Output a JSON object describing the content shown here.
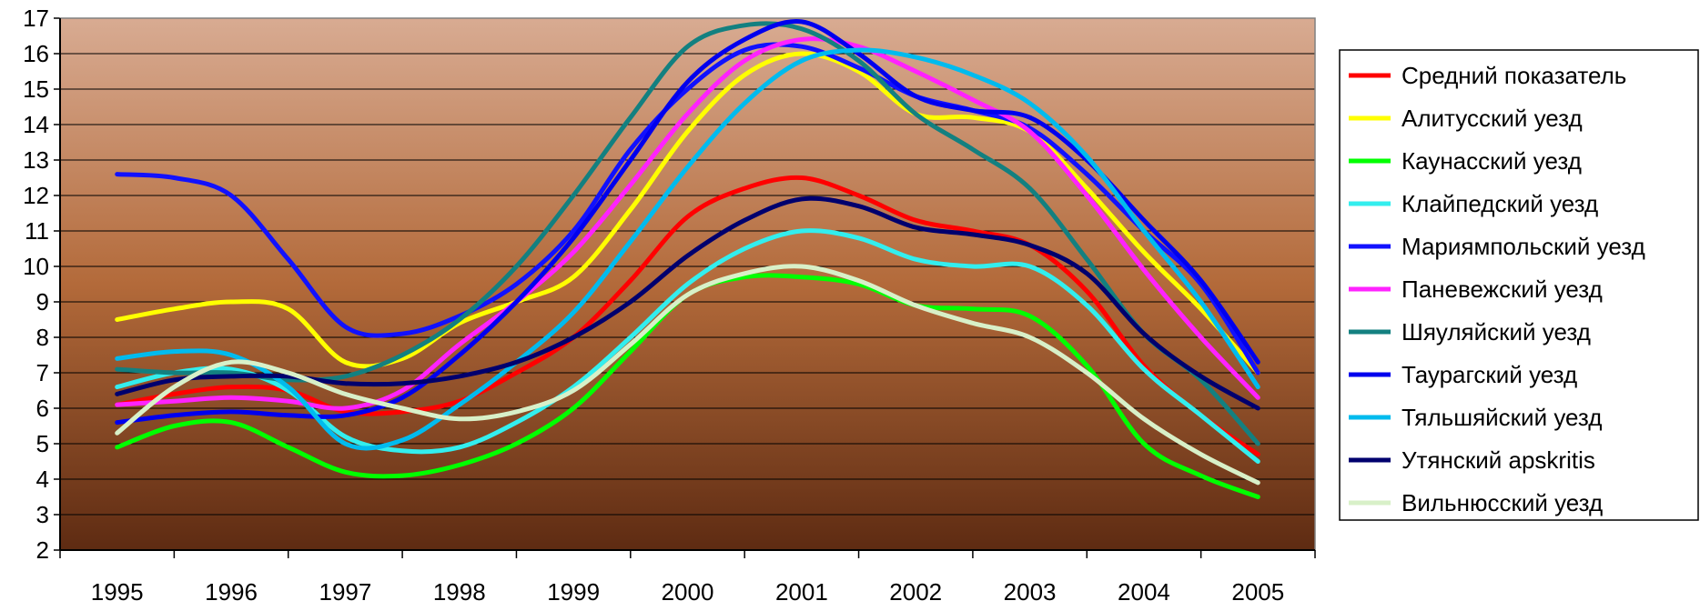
{
  "chart_data": {
    "type": "line",
    "title": "",
    "xlabel": "",
    "ylabel": "",
    "x": [
      1995.0,
      1995.5,
      1996.0,
      1996.5,
      1997.0,
      1997.5,
      1998.0,
      1998.5,
      1999.0,
      1999.5,
      2000.0,
      2000.5,
      2001.0,
      2001.5,
      2002.0,
      2002.5,
      2003.0,
      2003.5,
      2004.0,
      2004.5,
      2005.0
    ],
    "x_ticks": [
      "1995",
      "1996",
      "1997",
      "1998",
      "1999",
      "2000",
      "2001",
      "2002",
      "2003",
      "2004",
      "2005"
    ],
    "xlim": [
      1994.5,
      2005.5
    ],
    "ylim": [
      2,
      17
    ],
    "y_ticks": [
      2,
      3,
      4,
      5,
      6,
      7,
      8,
      9,
      10,
      11,
      12,
      13,
      14,
      15,
      16,
      17
    ],
    "grid": true,
    "legend_position": "right",
    "background_gradient": [
      "#d8ab92",
      "#b36a3a",
      "#5e2b12"
    ],
    "series": [
      {
        "name": "Средний показатель",
        "color": "#ff0000",
        "values": [
          6.1,
          6.4,
          6.6,
          6.5,
          5.9,
          5.9,
          6.2,
          7.0,
          8.0,
          9.6,
          11.4,
          12.2,
          12.5,
          12.0,
          11.3,
          11.0,
          10.6,
          9.3,
          7.2,
          5.8,
          4.7
        ]
      },
      {
        "name": "Алитусский уезд",
        "color": "#ffff00",
        "values": [
          8.5,
          8.8,
          9.0,
          8.8,
          7.3,
          7.4,
          8.4,
          9.0,
          9.7,
          11.6,
          13.8,
          15.4,
          16.0,
          15.5,
          14.3,
          14.2,
          13.8,
          12.2,
          10.4,
          8.8,
          7.0
        ]
      },
      {
        "name": "Каунасский уезд",
        "color": "#00ff00",
        "values": [
          4.9,
          5.5,
          5.6,
          4.9,
          4.2,
          4.1,
          4.4,
          5.0,
          6.0,
          7.6,
          9.2,
          9.7,
          9.7,
          9.5,
          8.9,
          8.8,
          8.6,
          7.2,
          5.0,
          4.1,
          3.5
        ]
      },
      {
        "name": "Клайпедский  уезд",
        "color": "#33eeee",
        "values": [
          6.6,
          7.0,
          7.1,
          6.5,
          5.2,
          4.8,
          4.9,
          5.6,
          6.6,
          8.0,
          9.5,
          10.5,
          11.0,
          10.8,
          10.2,
          10.0,
          10.0,
          8.9,
          7.1,
          5.8,
          4.5
        ]
      },
      {
        "name": "Мариямпольский  уезд",
        "color": "#1111ff",
        "values": [
          12.6,
          12.5,
          12.0,
          10.2,
          8.3,
          8.1,
          8.6,
          9.5,
          11.0,
          13.3,
          15.0,
          16.1,
          16.2,
          15.6,
          14.8,
          14.4,
          13.9,
          12.6,
          11.0,
          9.5,
          7.0
        ]
      },
      {
        "name": "Паневежский  уезд",
        "color": "#ff22ff",
        "values": [
          6.1,
          6.2,
          6.3,
          6.2,
          6.0,
          6.5,
          7.8,
          9.0,
          10.4,
          12.3,
          14.3,
          15.8,
          16.4,
          16.2,
          15.5,
          14.7,
          13.8,
          12.0,
          9.9,
          8.0,
          6.3
        ]
      },
      {
        "name": "Шяуляйский  уезд",
        "color": "#138080",
        "values": [
          7.1,
          7.0,
          7.0,
          6.8,
          6.9,
          7.5,
          8.5,
          10.0,
          12.0,
          14.2,
          16.2,
          16.8,
          16.7,
          15.8,
          14.3,
          13.3,
          12.2,
          10.2,
          8.1,
          6.8,
          5.0
        ]
      },
      {
        "name": "Таурагский  уезд",
        "color": "#0000ee",
        "values": [
          5.6,
          5.8,
          5.9,
          5.8,
          5.8,
          6.3,
          7.5,
          9.0,
          10.8,
          13.0,
          15.2,
          16.4,
          16.9,
          16.0,
          14.8,
          14.4,
          14.2,
          13.0,
          11.3,
          9.6,
          7.3
        ]
      },
      {
        "name": "Тяльшяйский  уезд",
        "color": "#00bbee",
        "values": [
          7.4,
          7.6,
          7.5,
          6.6,
          5.0,
          5.1,
          6.1,
          7.3,
          8.7,
          10.7,
          12.8,
          14.6,
          15.8,
          16.1,
          15.9,
          15.4,
          14.6,
          13.1,
          11.0,
          9.0,
          6.6
        ]
      },
      {
        "name": "Утянский  apskritis",
        "color": "#00006e",
        "values": [
          6.4,
          6.8,
          6.9,
          6.9,
          6.7,
          6.7,
          6.9,
          7.3,
          8.0,
          9.0,
          10.3,
          11.3,
          11.9,
          11.7,
          11.1,
          10.9,
          10.6,
          9.8,
          8.1,
          6.9,
          6.0
        ]
      },
      {
        "name": "Вильнюсский уезд",
        "color": "#d8f0c8",
        "values": [
          5.3,
          6.6,
          7.3,
          7.0,
          6.4,
          6.0,
          5.7,
          5.9,
          6.5,
          7.8,
          9.2,
          9.8,
          10.0,
          9.6,
          8.9,
          8.4,
          8.0,
          7.0,
          5.7,
          4.7,
          3.9
        ]
      }
    ]
  }
}
